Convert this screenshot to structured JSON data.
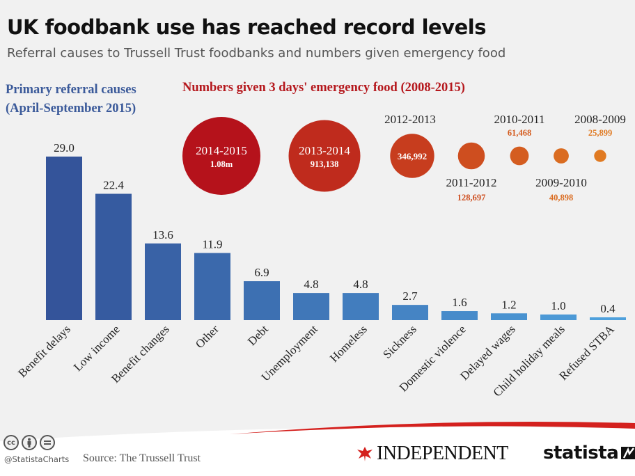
{
  "header": {
    "title": "UK foodbank use has reached record levels",
    "subtitle": "Referral causes to Trussell Trust foodbanks and numbers given emergency food"
  },
  "sections": {
    "left_title_line1": "Primary referral causes",
    "left_title_line2": "(April-September 2015)",
    "right_title": "Numbers given 3 days' emergency food (2008-2015)"
  },
  "footer": {
    "handle": "@StatistaCharts",
    "source": "Source: The Trussell Trust",
    "publisher": "INDEPENDENT",
    "brand": "statista",
    "cc_icons": [
      "cc",
      "by",
      "nd"
    ]
  },
  "colors": {
    "bar_dark": "#34549a",
    "bar_light": "#4ea0dc",
    "circle_dark": "#b5121b",
    "circle_light": "#e07a22",
    "left_title": "#3b5a9a",
    "right_title": "#b5181d"
  },
  "chart_data": [
    {
      "type": "bar",
      "title": "Primary referral causes (April-September 2015)",
      "categories": [
        "Benefit delays",
        "Low income",
        "Benefit changes",
        "Other",
        "Debt",
        "Unemployment",
        "Homeless",
        "Sickness",
        "Domestic violence",
        "Delayed wages",
        "Child holiday meals",
        "Refused STBA"
      ],
      "values": [
        29.0,
        22.4,
        13.6,
        11.9,
        6.9,
        4.8,
        4.8,
        2.7,
        1.6,
        1.2,
        1.0,
        0.4
      ],
      "value_labels": [
        "29.0",
        "22.4",
        "13.6",
        "11.9",
        "6.9",
        "4.8",
        "4.8",
        "2.7",
        "1.6",
        "1.2",
        "1.0",
        "0.4"
      ],
      "ylim": [
        0,
        29.0
      ],
      "grid": false
    },
    {
      "type": "bubble",
      "title": "Numbers given 3 days' emergency food (2008-2015)",
      "categories": [
        "2014-2015",
        "2013-2014",
        "2012-2013",
        "2011-2012",
        "2010-2011",
        "2009-2010",
        "2008-2009"
      ],
      "values": [
        1080000,
        913138,
        346992,
        128697,
        61468,
        40898,
        25899
      ],
      "value_labels": [
        "1.08m",
        "913,138",
        "346,992",
        "128,697",
        "61,468",
        "40,898",
        "25,899"
      ]
    }
  ]
}
